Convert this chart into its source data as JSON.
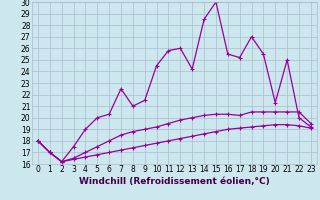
{
  "xlabel": "Windchill (Refroidissement éolien,°C)",
  "bg_color": "#cce8ee",
  "grid_color": "#aabbcc",
  "line_color": "#990099",
  "x": [
    0,
    1,
    2,
    3,
    4,
    5,
    6,
    7,
    8,
    9,
    10,
    11,
    12,
    13,
    14,
    15,
    16,
    17,
    18,
    19,
    20,
    21,
    22,
    23
  ],
  "line1": [
    18.0,
    17.0,
    16.2,
    16.4,
    16.6,
    16.8,
    17.0,
    17.2,
    17.4,
    17.6,
    17.8,
    18.0,
    18.2,
    18.4,
    18.6,
    18.8,
    19.0,
    19.1,
    19.2,
    19.3,
    19.4,
    19.4,
    19.3,
    19.1
  ],
  "line2": [
    18.0,
    17.0,
    16.2,
    16.5,
    17.0,
    17.5,
    18.0,
    18.5,
    18.8,
    19.0,
    19.2,
    19.5,
    19.8,
    20.0,
    20.2,
    20.3,
    20.3,
    20.2,
    20.5,
    20.5,
    20.5,
    20.5,
    20.5,
    19.5
  ],
  "line3": [
    18.0,
    17.0,
    16.2,
    17.5,
    19.0,
    20.0,
    20.3,
    22.5,
    21.0,
    21.5,
    24.5,
    25.8,
    26.0,
    24.2,
    28.5,
    30.0,
    25.5,
    25.2,
    27.0,
    25.5,
    21.3,
    25.0,
    20.0,
    19.2
  ],
  "ylim": [
    16,
    30
  ],
  "yticks": [
    16,
    17,
    18,
    19,
    20,
    21,
    22,
    23,
    24,
    25,
    26,
    27,
    28,
    29,
    30
  ],
  "xticks": [
    0,
    1,
    2,
    3,
    4,
    5,
    6,
    7,
    8,
    9,
    10,
    11,
    12,
    13,
    14,
    15,
    16,
    17,
    18,
    19,
    20,
    21,
    22,
    23
  ],
  "marker": "+",
  "markersize": 3,
  "linewidth": 0.9,
  "tick_fontsize": 5.5,
  "label_fontsize": 6.5
}
